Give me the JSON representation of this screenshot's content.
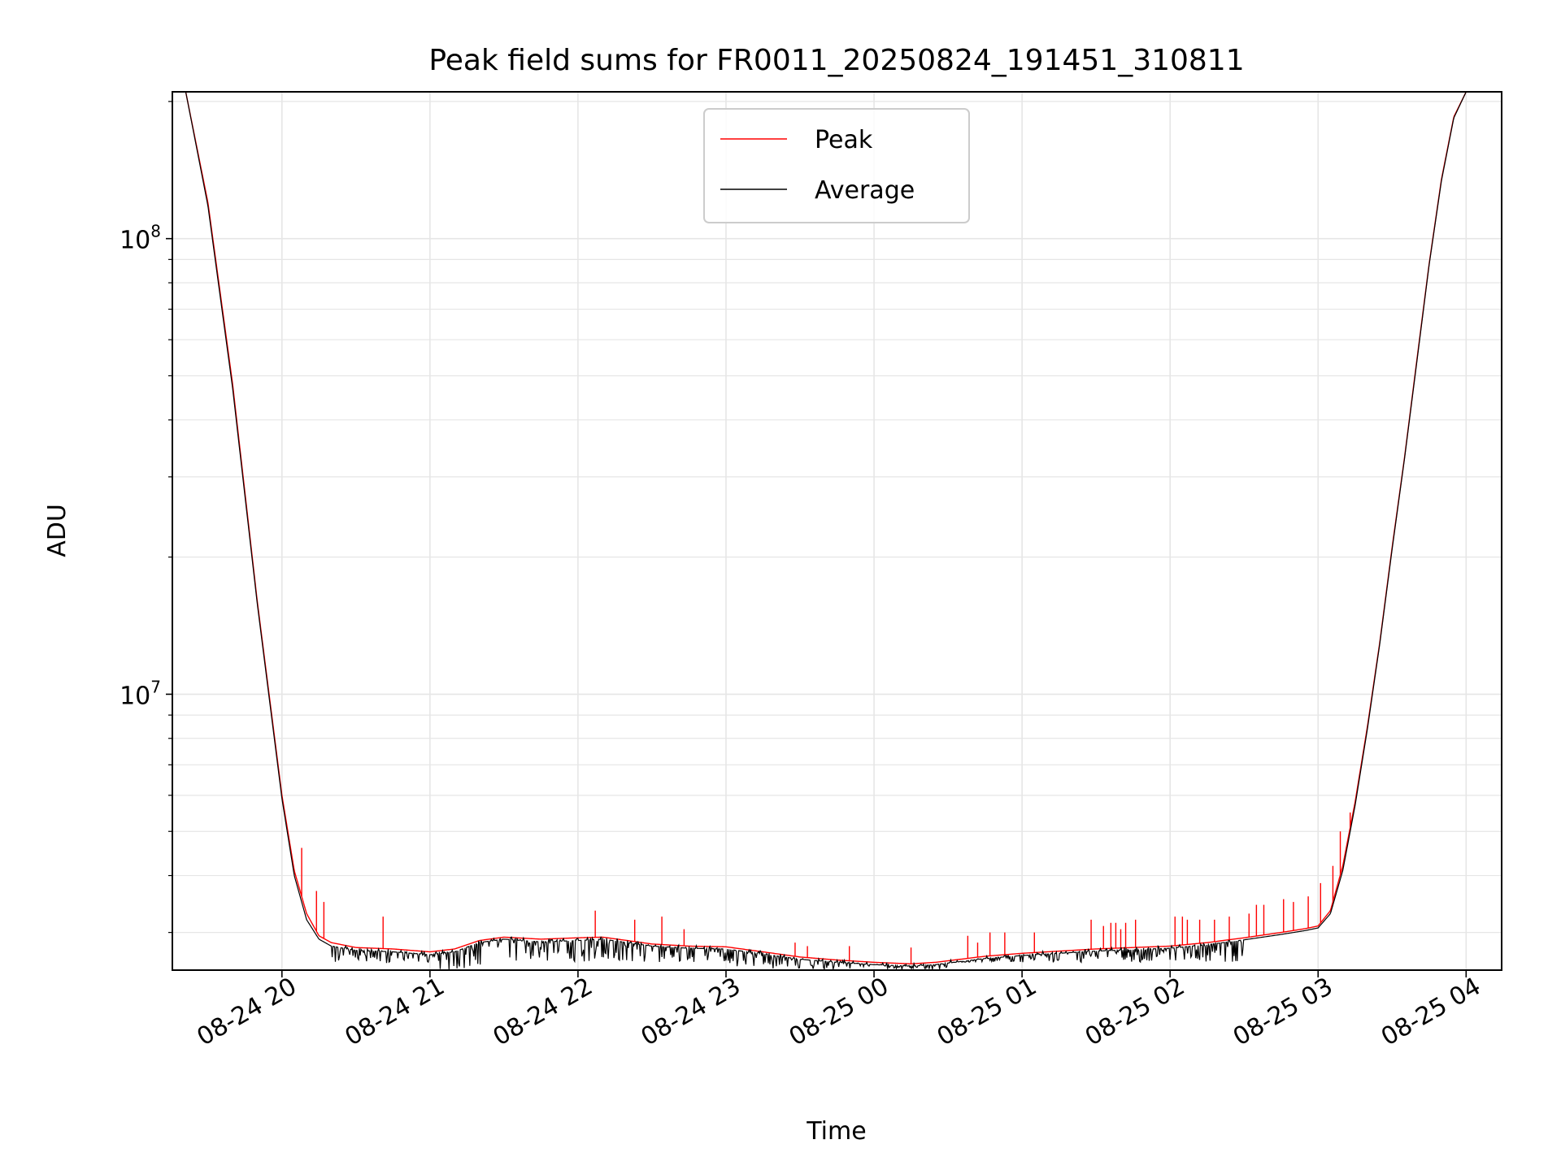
{
  "chart_data": {
    "type": "line",
    "title": "Peak field sums for FR0011_20250824_191451_310811",
    "xlabel": "Time",
    "ylabel": "ADU",
    "yscale": "log",
    "ylim": [
      2480000,
      210000000
    ],
    "xlim": [
      "2025-08-24 19:15:35",
      "2025-08-25 04:14:24"
    ],
    "grid": true,
    "legend_position": "upper-center",
    "x_ticks": [
      {
        "t": "2025-08-24 20:00",
        "label": "08-24 20"
      },
      {
        "t": "2025-08-24 21:00",
        "label": "08-24 21"
      },
      {
        "t": "2025-08-24 22:00",
        "label": "08-24 22"
      },
      {
        "t": "2025-08-24 23:00",
        "label": "08-24 23"
      },
      {
        "t": "2025-08-25 00:00",
        "label": "08-25 00"
      },
      {
        "t": "2025-08-25 01:00",
        "label": "08-25 01"
      },
      {
        "t": "2025-08-25 02:00",
        "label": "08-25 02"
      },
      {
        "t": "2025-08-25 03:00",
        "label": "08-25 03"
      },
      {
        "t": "2025-08-25 04:00",
        "label": "08-25 04"
      }
    ],
    "y_ticks": [
      {
        "value": 10000000,
        "base": "10",
        "exp": "7"
      },
      {
        "value": 100000000,
        "base": "10",
        "exp": "8"
      }
    ],
    "series": [
      {
        "name": "Peak",
        "color": "#ff0000",
        "x": [
          "2025-08-24 19:21",
          "2025-08-24 19:30",
          "2025-08-24 19:40",
          "2025-08-24 19:50",
          "2025-08-24 20:00",
          "2025-08-24 20:05",
          "2025-08-24 20:10",
          "2025-08-24 20:15",
          "2025-08-24 20:20",
          "2025-08-24 20:30",
          "2025-08-24 20:45",
          "2025-08-24 21:00",
          "2025-08-24 21:10",
          "2025-08-24 21:20",
          "2025-08-24 21:30",
          "2025-08-24 21:45",
          "2025-08-24 22:00",
          "2025-08-24 22:10",
          "2025-08-24 22:20",
          "2025-08-24 22:30",
          "2025-08-24 22:45",
          "2025-08-24 23:00",
          "2025-08-24 23:15",
          "2025-08-24 23:30",
          "2025-08-24 23:45",
          "2025-08-25 00:00",
          "2025-08-25 00:15",
          "2025-08-25 00:25",
          "2025-08-25 00:35",
          "2025-08-25 00:45",
          "2025-08-25 01:00",
          "2025-08-25 01:15",
          "2025-08-25 01:30",
          "2025-08-25 01:45",
          "2025-08-25 02:00",
          "2025-08-25 02:15",
          "2025-08-25 02:30",
          "2025-08-25 02:45",
          "2025-08-25 02:55",
          "2025-08-25 03:00",
          "2025-08-25 03:05",
          "2025-08-25 03:10",
          "2025-08-25 03:15",
          "2025-08-25 03:20",
          "2025-08-25 03:25",
          "2025-08-25 03:30",
          "2025-08-25 03:35",
          "2025-08-25 03:40",
          "2025-08-25 03:45",
          "2025-08-25 03:50",
          "2025-08-25 03:55",
          "2025-08-25 04:00"
        ],
        "y": [
          210000000,
          120000000,
          48000000,
          16000000,
          6000000,
          4100000,
          3300000,
          2950000,
          2850000,
          2780000,
          2760000,
          2720000,
          2760000,
          2880000,
          2930000,
          2900000,
          2920000,
          2930000,
          2880000,
          2830000,
          2800000,
          2790000,
          2720000,
          2650000,
          2610000,
          2580000,
          2560000,
          2580000,
          2620000,
          2660000,
          2700000,
          2730000,
          2760000,
          2780000,
          2800000,
          2850000,
          2920000,
          3000000,
          3060000,
          3100000,
          3350000,
          4200000,
          5800000,
          8500000,
          13000000,
          21000000,
          33000000,
          54000000,
          88000000,
          135000000,
          185000000,
          210000000
        ],
        "spikes": [
          {
            "x": "2025-08-24 20:08",
            "y": 4600000
          },
          {
            "x": "2025-08-24 20:14",
            "y": 3700000
          },
          {
            "x": "2025-08-24 20:17",
            "y": 3500000
          },
          {
            "x": "2025-08-24 20:41",
            "y": 3250000
          },
          {
            "x": "2025-08-24 22:07",
            "y": 3350000
          },
          {
            "x": "2025-08-24 22:23",
            "y": 3200000
          },
          {
            "x": "2025-08-24 22:34",
            "y": 3250000
          },
          {
            "x": "2025-08-24 22:43",
            "y": 3050000
          },
          {
            "x": "2025-08-24 23:28",
            "y": 2850000
          },
          {
            "x": "2025-08-24 23:33",
            "y": 2800000
          },
          {
            "x": "2025-08-24 23:50",
            "y": 2800000
          },
          {
            "x": "2025-08-25 00:15",
            "y": 2780000
          },
          {
            "x": "2025-08-25 00:38",
            "y": 2950000
          },
          {
            "x": "2025-08-25 00:42",
            "y": 2850000
          },
          {
            "x": "2025-08-25 00:47",
            "y": 3000000
          },
          {
            "x": "2025-08-25 00:53",
            "y": 3000000
          },
          {
            "x": "2025-08-25 01:05",
            "y": 3000000
          },
          {
            "x": "2025-08-25 01:28",
            "y": 3200000
          },
          {
            "x": "2025-08-25 01:33",
            "y": 3100000
          },
          {
            "x": "2025-08-25 01:36",
            "y": 3150000
          },
          {
            "x": "2025-08-25 01:38",
            "y": 3150000
          },
          {
            "x": "2025-08-25 01:40",
            "y": 3050000
          },
          {
            "x": "2025-08-25 01:42",
            "y": 3150000
          },
          {
            "x": "2025-08-25 01:46",
            "y": 3200000
          },
          {
            "x": "2025-08-25 02:02",
            "y": 3250000
          },
          {
            "x": "2025-08-25 02:05",
            "y": 3250000
          },
          {
            "x": "2025-08-25 02:07",
            "y": 3200000
          },
          {
            "x": "2025-08-25 02:12",
            "y": 3200000
          },
          {
            "x": "2025-08-25 02:18",
            "y": 3200000
          },
          {
            "x": "2025-08-25 02:24",
            "y": 3250000
          },
          {
            "x": "2025-08-25 02:32",
            "y": 3300000
          },
          {
            "x": "2025-08-25 02:35",
            "y": 3450000
          },
          {
            "x": "2025-08-25 02:38",
            "y": 3450000
          },
          {
            "x": "2025-08-25 02:46",
            "y": 3550000
          },
          {
            "x": "2025-08-25 02:50",
            "y": 3500000
          },
          {
            "x": "2025-08-25 02:56",
            "y": 3600000
          },
          {
            "x": "2025-08-25 03:01",
            "y": 3850000
          },
          {
            "x": "2025-08-25 03:06",
            "y": 4200000
          },
          {
            "x": "2025-08-25 03:09",
            "y": 5000000
          },
          {
            "x": "2025-08-25 03:13",
            "y": 5500000
          }
        ]
      },
      {
        "name": "Average",
        "color": "#000000",
        "x": [
          "2025-08-24 19:21",
          "2025-08-24 19:30",
          "2025-08-24 19:40",
          "2025-08-24 19:50",
          "2025-08-24 20:00",
          "2025-08-24 20:05",
          "2025-08-24 20:10",
          "2025-08-24 20:15",
          "2025-08-24 20:20",
          "2025-08-24 20:30",
          "2025-08-24 20:45",
          "2025-08-24 21:00",
          "2025-08-24 21:10",
          "2025-08-24 21:20",
          "2025-08-24 21:30",
          "2025-08-24 21:45",
          "2025-08-24 22:00",
          "2025-08-24 22:10",
          "2025-08-24 22:20",
          "2025-08-24 22:30",
          "2025-08-24 22:45",
          "2025-08-24 23:00",
          "2025-08-24 23:15",
          "2025-08-24 23:30",
          "2025-08-24 23:45",
          "2025-08-25 00:00",
          "2025-08-25 00:15",
          "2025-08-25 00:25",
          "2025-08-25 00:35",
          "2025-08-25 00:45",
          "2025-08-25 01:00",
          "2025-08-25 01:15",
          "2025-08-25 01:30",
          "2025-08-25 01:45",
          "2025-08-25 02:00",
          "2025-08-25 02:15",
          "2025-08-25 02:30",
          "2025-08-25 02:45",
          "2025-08-25 02:55",
          "2025-08-25 03:00",
          "2025-08-25 03:05",
          "2025-08-25 03:10",
          "2025-08-25 03:15",
          "2025-08-25 03:20",
          "2025-08-25 03:25",
          "2025-08-25 03:30",
          "2025-08-25 03:35",
          "2025-08-25 03:40",
          "2025-08-25 03:45",
          "2025-08-25 03:50",
          "2025-08-25 03:55",
          "2025-08-25 04:00"
        ],
        "y": [
          210000000,
          118000000,
          47000000,
          15800000,
          5900000,
          4000000,
          3200000,
          2900000,
          2800000,
          2740000,
          2720000,
          2680000,
          2720000,
          2850000,
          2900000,
          2860000,
          2880000,
          2900000,
          2850000,
          2800000,
          2770000,
          2760000,
          2690000,
          2620000,
          2580000,
          2550000,
          2530000,
          2550000,
          2590000,
          2630000,
          2670000,
          2700000,
          2730000,
          2750000,
          2770000,
          2820000,
          2890000,
          2970000,
          3030000,
          3070000,
          3300000,
          4100000,
          5700000,
          8400000,
          12900000,
          20800000,
          32800000,
          53500000,
          87500000,
          134000000,
          184000000,
          210000000
        ],
        "noise_band": [
          {
            "from": "2025-08-24 20:20",
            "to": "2025-08-24 21:00",
            "low": 2560000
          },
          {
            "from": "2025-08-24 21:00",
            "to": "2025-08-24 21:30",
            "low": 2480000
          },
          {
            "from": "2025-08-24 21:30",
            "to": "2025-08-24 23:00",
            "low": 2580000
          },
          {
            "from": "2025-08-24 23:00",
            "to": "2025-08-25 00:30",
            "low": 2490000
          },
          {
            "from": "2025-08-25 00:30",
            "to": "2025-08-25 02:30",
            "low": 2580000
          }
        ]
      }
    ]
  }
}
